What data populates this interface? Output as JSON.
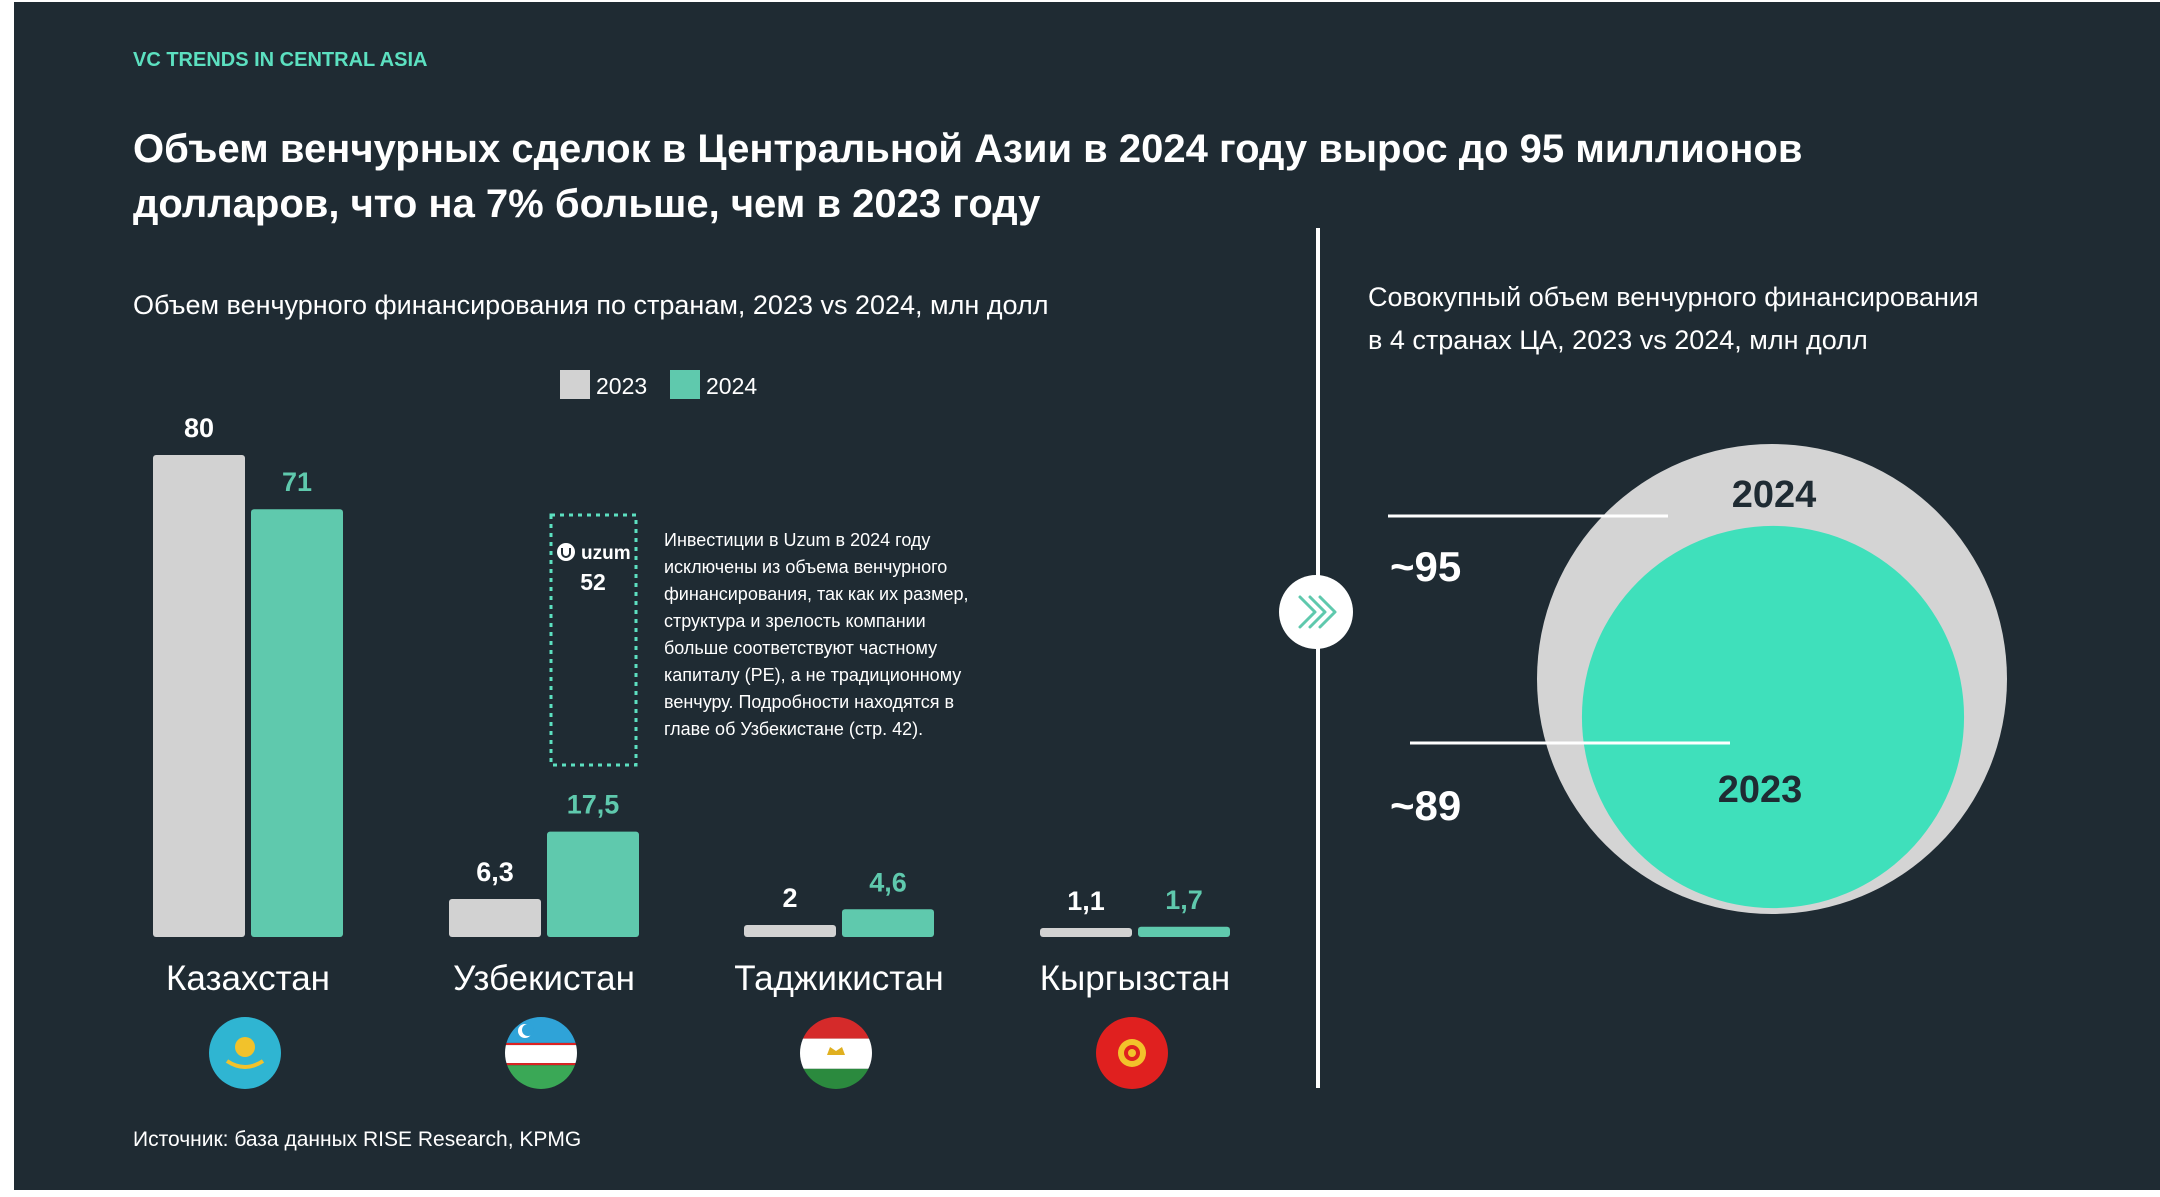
{
  "kicker": "VC TRENDS IN CENTRAL ASIA",
  "headline_line1": "Объем венчурных сделок в Центральной Азии в 2024 году вырос до 95 миллионов",
  "headline_line2": "долларов, что на 7% больше, чем в 2023 году",
  "source": "Источник: база данных RISE Research, KPMG",
  "colors": {
    "background": "#1f2b33",
    "accent": "#5ce0c0",
    "bar_2023": "#d2d2d2",
    "bar_2024": "#5fc9ad",
    "circle_2023": "#3fe0bb",
    "circle_2024": "#d4d4d4"
  },
  "chart_data": [
    {
      "type": "bar",
      "title": "Объем венчурного финансирования по странам, 2023 vs 2024, млн долл",
      "categories": [
        "Казахстан",
        "Узбекистан",
        "Таджикистан",
        "Кыргызстан"
      ],
      "series": [
        {
          "name": "2023",
          "values": [
            80,
            6.3,
            2,
            1.1
          ],
          "labels": [
            "80",
            "6,3",
            "2",
            "1,1"
          ]
        },
        {
          "name": "2024",
          "values": [
            71,
            17.5,
            4.6,
            1.7
          ],
          "labels": [
            "71",
            "17,5",
            "4,6",
            "1,7"
          ]
        }
      ],
      "legend_position": "top-center",
      "ylim": [
        0,
        80
      ],
      "excluded": {
        "company": "uzum",
        "category": "Узбекистан",
        "value": 52,
        "label": "52",
        "note": [
          "Инвестиции в Uzum в 2024 году",
          "исключены из объема венчурного",
          "финансирования, так как их размер,",
          "структура и зрелость компании",
          "больше соответствуют частному",
          "капиталу (PE), а не традиционному",
          "венчуру. Подробности находятся в",
          "главе об Узбекистане (стр. 42)."
        ]
      },
      "flags": [
        "kazakhstan-flag-icon",
        "uzbekistan-flag-icon",
        "tajikistan-flag-icon",
        "kyrgyzstan-flag-icon"
      ]
    },
    {
      "type": "area",
      "title_line1": "Совокупный объем венчурного финансирования",
      "title_line2": "в 4 странах ЦА, 2023 vs 2024, млн долл",
      "series": [
        {
          "name": "2024",
          "value": 95,
          "label": "~95"
        },
        {
          "name": "2023",
          "value": 89,
          "label": "~89"
        }
      ],
      "arrow_icon": "chevrons-right-icon"
    }
  ]
}
